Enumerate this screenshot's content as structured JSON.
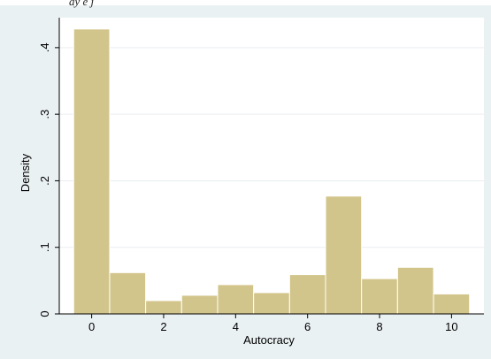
{
  "caption": "ay e j",
  "chart_data": {
    "type": "bar",
    "xlabel": "Autocracy",
    "ylabel": "Density",
    "bin_width": 1,
    "bins": [
      {
        "x": 0,
        "value": 0.428
      },
      {
        "x": 1,
        "value": 0.062
      },
      {
        "x": 2,
        "value": 0.02
      },
      {
        "x": 3,
        "value": 0.028
      },
      {
        "x": 4,
        "value": 0.044
      },
      {
        "x": 5,
        "value": 0.032
      },
      {
        "x": 6,
        "value": 0.059
      },
      {
        "x": 7,
        "value": 0.177
      },
      {
        "x": 8,
        "value": 0.053
      },
      {
        "x": 9,
        "value": 0.07
      },
      {
        "x": 10,
        "value": 0.03
      }
    ],
    "xlim": [
      -0.9,
      10.9
    ],
    "ylim": [
      0,
      0.445
    ],
    "xticks": [
      {
        "value": 0,
        "label": "0"
      },
      {
        "value": 2,
        "label": "2"
      },
      {
        "value": 4,
        "label": "4"
      },
      {
        "value": 6,
        "label": "6"
      },
      {
        "value": 8,
        "label": "8"
      },
      {
        "value": 10,
        "label": "10"
      }
    ],
    "yticks": [
      {
        "value": 0,
        "label": "0"
      },
      {
        "value": 0.1,
        "label": ".1"
      },
      {
        "value": 0.2,
        "label": ".2"
      },
      {
        "value": 0.3,
        "label": ".3"
      },
      {
        "value": 0.4,
        "label": ".4"
      }
    ],
    "grid": true,
    "colors": {
      "outer_background": "#eaf1f3",
      "plot_background": "#ffffff",
      "bar_fill": "#d2c58b",
      "bar_stroke": "#ffffff",
      "grid": "#e9eef0",
      "axis": "#000000"
    }
  }
}
